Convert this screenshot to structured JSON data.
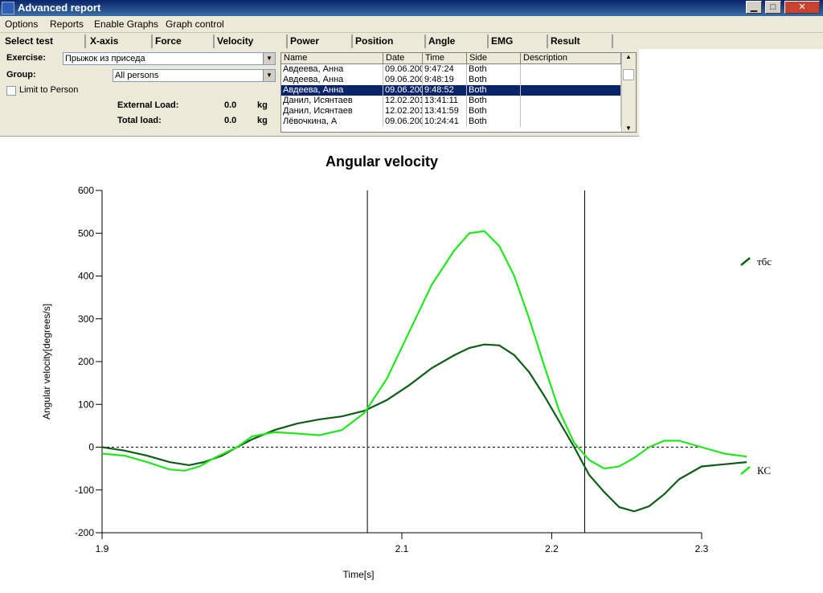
{
  "window": {
    "title": "Advanced report",
    "min_label": "▁",
    "max_label": "□",
    "close_label": "✕"
  },
  "menu": [
    "Options",
    "Reports",
    "Enable Graphs",
    "Graph control"
  ],
  "tabs": [
    "Select test",
    "X-axis",
    "Force",
    "Velocity",
    "Power",
    "Position",
    "Angle",
    "EMG",
    "Result"
  ],
  "form": {
    "exercise_label": "Exercise:",
    "exercise_value": "Прыжок из приседа",
    "group_label": "Group:",
    "group_value": "All persons",
    "limit_label": "Limit to Person",
    "external_load_label": "External Load:",
    "external_load_value": "0.0",
    "external_load_unit": "kg",
    "total_load_label": "Total load:",
    "total_load_value": "0.0",
    "total_load_unit": "kg"
  },
  "table": {
    "columns": [
      "Name",
      "Date",
      "Time",
      "Side",
      "Description"
    ],
    "rows": [
      {
        "name": "Авдеева, Анна",
        "date": "09.06.200",
        "time": "9:47:24",
        "side": "Both",
        "description": ""
      },
      {
        "name": "Авдеева, Анна",
        "date": "09.06.200",
        "time": "9:48:19",
        "side": "Both",
        "description": ""
      },
      {
        "name": "Авдеева, Анна",
        "date": "09.06.200",
        "time": "9:48:52",
        "side": "Both",
        "description": ""
      },
      {
        "name": "Данил, Исянтаев",
        "date": "12.02.201",
        "time": "13:41:11",
        "side": "Both",
        "description": ""
      },
      {
        "name": "Данил, Исянтаев",
        "date": "12.02.201",
        "time": "13:41:59",
        "side": "Both",
        "description": ""
      },
      {
        "name": "Лёвочкина, А",
        "date": "09.06.200",
        "time": "10:24:41",
        "side": "Both",
        "description": ""
      }
    ],
    "selected_index": 2
  },
  "chart_data": {
    "type": "line",
    "title": "Angular velocity",
    "xlabel": "Time[s]",
    "ylabel": "Angular velocity[degrees/s]",
    "xlim": [
      1.9,
      2.3
    ],
    "ylim": [
      -200,
      600
    ],
    "xticks": [
      1.9,
      2.1,
      2.2,
      2.3
    ],
    "yticks": [
      -200,
      -100,
      0,
      100,
      200,
      300,
      400,
      500,
      600
    ],
    "grid": false,
    "legend": "right",
    "zero_line": "dashed",
    "markers_x": [
      2.077,
      2.222
    ],
    "series": [
      {
        "name": "тбс",
        "color": "#0f5c17",
        "points": [
          [
            1.9,
            0
          ],
          [
            1.915,
            -8
          ],
          [
            1.93,
            -20
          ],
          [
            1.945,
            -35
          ],
          [
            1.958,
            -42
          ],
          [
            1.968,
            -35
          ],
          [
            1.98,
            -20
          ],
          [
            1.99,
            0
          ],
          [
            2.0,
            18
          ],
          [
            2.015,
            40
          ],
          [
            2.03,
            55
          ],
          [
            2.045,
            65
          ],
          [
            2.06,
            72
          ],
          [
            2.075,
            85
          ],
          [
            2.09,
            110
          ],
          [
            2.105,
            145
          ],
          [
            2.12,
            185
          ],
          [
            2.135,
            215
          ],
          [
            2.145,
            232
          ],
          [
            2.155,
            240
          ],
          [
            2.165,
            238
          ],
          [
            2.175,
            215
          ],
          [
            2.185,
            175
          ],
          [
            2.195,
            120
          ],
          [
            2.205,
            60
          ],
          [
            2.215,
            0
          ],
          [
            2.225,
            -65
          ],
          [
            2.235,
            -105
          ],
          [
            2.245,
            -140
          ],
          [
            2.255,
            -150
          ],
          [
            2.265,
            -138
          ],
          [
            2.275,
            -110
          ],
          [
            2.285,
            -75
          ],
          [
            2.3,
            -45
          ],
          [
            2.315,
            -40
          ],
          [
            2.33,
            -35
          ]
        ]
      },
      {
        "name": "КС",
        "color": "#22e61e",
        "points": [
          [
            1.9,
            -15
          ],
          [
            1.915,
            -20
          ],
          [
            1.93,
            -35
          ],
          [
            1.945,
            -52
          ],
          [
            1.955,
            -55
          ],
          [
            1.965,
            -45
          ],
          [
            1.975,
            -25
          ],
          [
            1.99,
            0
          ],
          [
            2.0,
            25
          ],
          [
            2.015,
            35
          ],
          [
            2.03,
            32
          ],
          [
            2.045,
            28
          ],
          [
            2.06,
            40
          ],
          [
            2.075,
            80
          ],
          [
            2.09,
            160
          ],
          [
            2.105,
            270
          ],
          [
            2.12,
            380
          ],
          [
            2.135,
            460
          ],
          [
            2.145,
            500
          ],
          [
            2.155,
            505
          ],
          [
            2.165,
            470
          ],
          [
            2.175,
            400
          ],
          [
            2.185,
            300
          ],
          [
            2.195,
            190
          ],
          [
            2.205,
            85
          ],
          [
            2.215,
            10
          ],
          [
            2.225,
            -30
          ],
          [
            2.235,
            -50
          ],
          [
            2.245,
            -45
          ],
          [
            2.255,
            -25
          ],
          [
            2.265,
            0
          ],
          [
            2.275,
            15
          ],
          [
            2.285,
            15
          ],
          [
            2.3,
            0
          ],
          [
            2.315,
            -15
          ],
          [
            2.33,
            -22
          ]
        ]
      }
    ]
  }
}
